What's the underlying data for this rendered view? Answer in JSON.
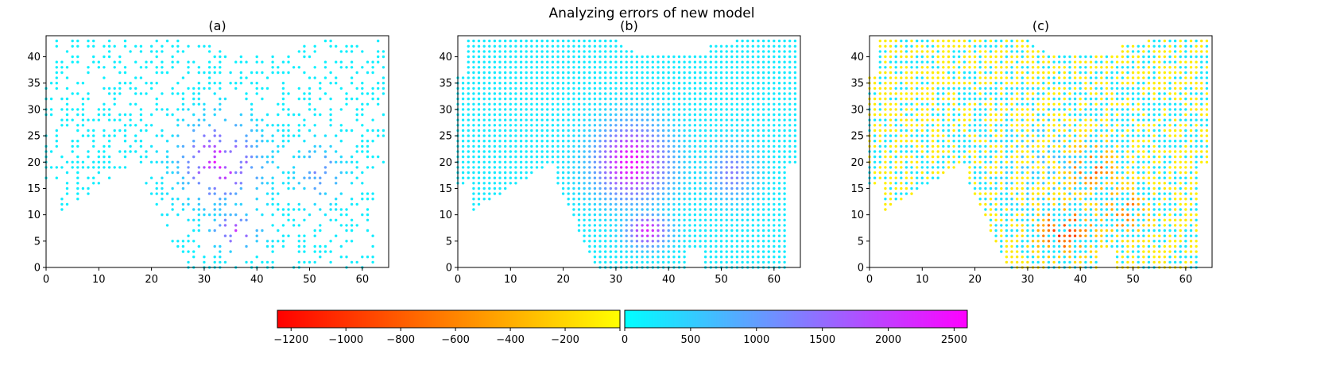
{
  "suptitle": "Analyzing errors of new model",
  "chart_data": [
    {
      "type": "scatter",
      "title": "(a)",
      "xlim": [
        0,
        65
      ],
      "ylim": [
        0,
        44
      ],
      "xticks": [
        0,
        10,
        20,
        30,
        40,
        50,
        60
      ],
      "yticks": [
        0,
        5,
        10,
        15,
        20,
        25,
        30,
        35,
        40
      ],
      "point_set": "sparse positive errors on a 65x44 grid"
    },
    {
      "type": "scatter",
      "title": "(b)",
      "xlim": [
        0,
        65
      ],
      "ylim": [
        0,
        44
      ],
      "xticks": [
        0,
        10,
        20,
        30,
        40,
        50,
        60
      ],
      "yticks": [
        0,
        5,
        10,
        15,
        20,
        25,
        30,
        35,
        40
      ],
      "point_set": "dense positive errors on a 65x44 grid"
    },
    {
      "type": "scatter",
      "title": "(c)",
      "xlim": [
        0,
        65
      ],
      "ylim": [
        0,
        44
      ],
      "xticks": [
        0,
        10,
        20,
        30,
        40,
        50,
        60
      ],
      "yticks": [
        0,
        5,
        10,
        15,
        20,
        25,
        30,
        35,
        40
      ],
      "point_set": "dense mixed positive and negative errors on a 65x44 grid"
    }
  ],
  "colorbars": [
    {
      "name": "negative",
      "range": [
        -1250,
        0
      ],
      "colors": [
        "#ff0000",
        "#ffff00"
      ],
      "ticks": [
        -1200,
        -1000,
        -800,
        -600,
        -400,
        -200,
        0
      ],
      "tick_labels": [
        "−1200",
        "−1000",
        "−800",
        "−600",
        "−400",
        "−200"
      ]
    },
    {
      "name": "positive",
      "range": [
        0,
        2600
      ],
      "colors": [
        "#00ffff",
        "#ff00ff"
      ],
      "ticks": [
        0,
        500,
        1000,
        1500,
        2000,
        2500
      ],
      "tick_labels": [
        "0",
        "500",
        "1000",
        "1500",
        "2000",
        "2500"
      ]
    }
  ]
}
